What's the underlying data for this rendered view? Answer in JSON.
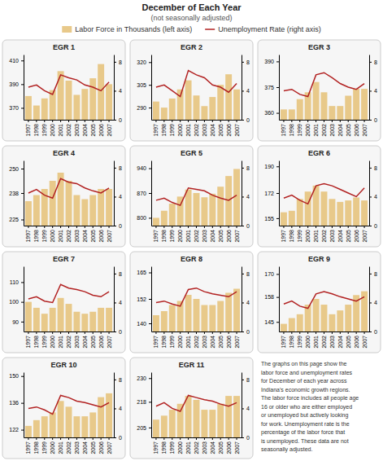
{
  "title": "December of Each Year",
  "subtitle": "(not seasonally adjusted)",
  "annotations": [
    "The graphs on this page show the\nlabor force and unemployment rates\nfor December of each year across\nIndiana's economic growth regions.\nThe labor force includes all people age\n16 or older who are either employed\nor unemployed but actively looking\nfor work. Unemployment rate is the\npercentage of the labor force that\nis unemployed. These data are not\nseasonally adjusted."
  ],
  "chart_data": [
    {
      "type": "bar",
      "title": "EGR 1",
      "categories": [
        "1997",
        "1998",
        "1999",
        "2000",
        "2001",
        "2002",
        "2003",
        "2004",
        "2005",
        "2006",
        "2007"
      ],
      "series": [
        {
          "name": "Labor Force in Thousands (left axis)",
          "type": "bar",
          "color": "#E8C98A",
          "values": [
            380,
            372,
            378,
            385,
            401,
            393,
            381,
            386,
            395,
            407,
            390
          ]
        },
        {
          "name": "Unemployment Rate (right axis)",
          "type": "line",
          "color": "#B22222",
          "axis": "y2",
          "values": [
            4.5,
            4.8,
            4.0,
            3.5,
            6.2,
            5.8,
            5.5,
            4.8,
            4.5,
            4.0,
            5.2
          ]
        }
      ],
      "ylim": [
        360,
        415
      ],
      "yticks": [
        370,
        390,
        410
      ],
      "y2lim": [
        0,
        9
      ],
      "y2ticks": [
        0,
        4,
        8
      ]
    },
    {
      "type": "bar",
      "title": "EGR 2",
      "categories": [
        "1997",
        "1998",
        "1999",
        "2000",
        "2001",
        "2002",
        "2003",
        "2004",
        "2005",
        "2006",
        "2007"
      ],
      "series": [
        {
          "type": "bar",
          "color": "#E8C98A",
          "values": [
            294,
            290,
            296,
            302,
            308,
            298,
            291,
            297,
            305,
            312,
            302
          ]
        },
        {
          "type": "line",
          "color": "#B22222",
          "axis": "y2",
          "values": [
            4.5,
            4.8,
            4.0,
            3.2,
            6.8,
            6.2,
            5.8,
            4.8,
            4.5,
            3.8,
            5.0
          ]
        }
      ],
      "ylim": [
        282,
        325
      ],
      "yticks": [
        290,
        305,
        320
      ],
      "y2lim": [
        0,
        9
      ],
      "y2ticks": [
        0,
        4,
        8
      ]
    },
    {
      "type": "bar",
      "title": "EGR 3",
      "categories": [
        "1997",
        "1998",
        "1999",
        "2000",
        "2001",
        "2002",
        "2003",
        "2004",
        "2005",
        "2006",
        "2007"
      ],
      "series": [
        {
          "type": "bar",
          "color": "#E8C98A",
          "values": [
            362,
            362,
            368,
            372,
            378,
            372,
            364,
            364,
            370,
            374,
            374
          ]
        },
        {
          "type": "line",
          "color": "#B22222",
          "axis": "y2",
          "values": [
            4.0,
            4.2,
            3.5,
            3.2,
            6.2,
            6.5,
            5.8,
            5.0,
            4.5,
            4.2,
            5.0
          ]
        }
      ],
      "ylim": [
        356,
        394
      ],
      "yticks": [
        360,
        375,
        390
      ],
      "y2lim": [
        0,
        9
      ],
      "y2ticks": [
        0,
        4,
        8
      ]
    },
    {
      "type": "bar",
      "title": "EGR 4",
      "categories": [
        "1997",
        "1998",
        "1999",
        "2000",
        "2001",
        "2002",
        "2003",
        "2004",
        "2005",
        "2006",
        "2007"
      ],
      "series": [
        {
          "type": "bar",
          "color": "#E8C98A",
          "values": [
            234,
            237,
            240,
            244,
            248,
            244,
            237,
            235,
            237,
            240,
            240
          ]
        },
        {
          "type": "line",
          "color": "#B22222",
          "axis": "y2",
          "values": [
            4.5,
            5.0,
            4.2,
            3.8,
            6.5,
            6.0,
            5.8,
            5.2,
            4.8,
            4.5,
            5.2
          ]
        }
      ],
      "ylim": [
        222,
        254
      ],
      "yticks": [
        225,
        238,
        250
      ],
      "y2lim": [
        0,
        9
      ],
      "y2ticks": [
        0,
        4,
        8
      ]
    },
    {
      "type": "bar",
      "title": "EGR 5",
      "categories": [
        "1997",
        "1998",
        "1999",
        "2000",
        "2001",
        "2002",
        "2003",
        "2004",
        "2005",
        "2006",
        "2007"
      ],
      "series": [
        {
          "type": "bar",
          "color": "#E8C98A",
          "values": [
            800,
            820,
            840,
            860,
            880,
            870,
            858,
            868,
            888,
            918,
            938
          ]
        },
        {
          "type": "line",
          "color": "#B22222",
          "axis": "y2",
          "values": [
            3.5,
            3.8,
            3.2,
            2.8,
            5.2,
            5.0,
            4.8,
            4.2,
            3.8,
            3.5,
            4.2
          ]
        }
      ],
      "ylim": [
        778,
        962
      ],
      "yticks": [
        800,
        870,
        940
      ],
      "y2lim": [
        0,
        9
      ],
      "y2ticks": [
        0,
        4,
        8
      ]
    },
    {
      "type": "bar",
      "title": "EGR 6",
      "categories": [
        "1997",
        "1998",
        "1999",
        "2000",
        "2001",
        "2002",
        "2003",
        "2004",
        "2005",
        "2006",
        "2007"
      ],
      "series": [
        {
          "type": "bar",
          "color": "#E8C98A",
          "values": [
            159,
            160,
            168,
            173,
            177,
            173,
            168,
            166,
            167,
            169,
            167
          ]
        },
        {
          "type": "line",
          "color": "#B22222",
          "axis": "y2",
          "values": [
            3.8,
            4.2,
            3.5,
            3.0,
            5.5,
            5.8,
            5.5,
            5.0,
            4.5,
            4.0,
            5.2
          ]
        }
      ],
      "ylim": [
        150,
        194
      ],
      "yticks": [
        155,
        172,
        190
      ],
      "y2lim": [
        0,
        9
      ],
      "y2ticks": [
        0,
        4,
        8
      ]
    },
    {
      "type": "bar",
      "title": "EGR 7",
      "categories": [
        "1997",
        "1998",
        "1999",
        "2000",
        "2001",
        "2002",
        "2003",
        "2004",
        "2005",
        "2006",
        "2007"
      ],
      "series": [
        {
          "type": "bar",
          "color": "#E8C98A",
          "values": [
            100,
            97,
            94,
            97,
            102,
            99,
            95,
            94,
            95,
            97,
            97
          ]
        },
        {
          "type": "line",
          "color": "#B22222",
          "axis": "y2",
          "values": [
            4.5,
            4.8,
            4.2,
            4.0,
            6.5,
            6.0,
            5.8,
            5.5,
            5.0,
            4.8,
            5.5
          ]
        }
      ],
      "ylim": [
        85,
        118
      ],
      "yticks": [
        90,
        100,
        110
      ],
      "y2lim": [
        0,
        9
      ],
      "y2ticks": [
        0,
        4,
        8
      ]
    },
    {
      "type": "bar",
      "title": "EGR 8",
      "categories": [
        "1997",
        "1998",
        "1999",
        "2000",
        "2001",
        "2002",
        "2003",
        "2004",
        "2005",
        "2006",
        "2007"
      ],
      "series": [
        {
          "type": "bar",
          "color": "#E8C98A",
          "values": [
            144,
            146,
            149,
            151,
            154,
            152,
            149,
            149,
            151,
            155,
            157
          ]
        },
        {
          "type": "line",
          "color": "#B22222",
          "axis": "y2",
          "values": [
            4.0,
            4.2,
            3.8,
            3.5,
            5.8,
            6.0,
            5.5,
            5.2,
            5.0,
            4.8,
            5.5
          ]
        }
      ],
      "ylim": [
        136,
        168
      ],
      "yticks": [
        140,
        152,
        165
      ],
      "y2lim": [
        0,
        9
      ],
      "y2ticks": [
        0,
        4,
        8
      ]
    },
    {
      "type": "bar",
      "title": "EGR 9",
      "categories": [
        "1997",
        "1998",
        "1999",
        "2000",
        "2001",
        "2002",
        "2003",
        "2004",
        "2005",
        "2006",
        "2007"
      ],
      "series": [
        {
          "type": "bar",
          "color": "#E8C98A",
          "values": [
            144,
            147,
            149,
            154,
            157,
            154,
            149,
            151,
            154,
            159,
            161
          ]
        },
        {
          "type": "line",
          "color": "#B22222",
          "axis": "y2",
          "values": [
            3.8,
            4.2,
            3.5,
            3.2,
            5.2,
            5.5,
            5.2,
            4.8,
            4.5,
            4.2,
            4.8
          ]
        }
      ],
      "ylim": [
        140,
        174
      ],
      "yticks": [
        145,
        158,
        170
      ],
      "y2lim": [
        0,
        9
      ],
      "y2ticks": [
        0,
        4,
        8
      ]
    },
    {
      "type": "bar",
      "title": "EGR 10",
      "categories": [
        "1997",
        "1998",
        "1999",
        "2000",
        "2001",
        "2002",
        "2003",
        "2004",
        "2005",
        "2006",
        "2007"
      ],
      "series": [
        {
          "type": "bar",
          "color": "#E8C98A",
          "values": [
            124,
            127,
            129,
            131,
            137,
            134,
            129,
            129,
            131,
            139,
            141
          ]
        },
        {
          "type": "line",
          "color": "#B22222",
          "axis": "y2",
          "values": [
            4.0,
            4.2,
            3.8,
            3.2,
            5.8,
            5.5,
            5.0,
            4.8,
            4.5,
            4.2,
            4.8
          ]
        }
      ],
      "ylim": [
        118,
        152
      ],
      "yticks": [
        122,
        136,
        150
      ],
      "y2lim": [
        0,
        9
      ],
      "y2ticks": [
        0,
        4,
        8
      ]
    },
    {
      "type": "bar",
      "title": "EGR 11",
      "categories": [
        "1997",
        "1998",
        "1999",
        "2000",
        "2001",
        "2002",
        "2003",
        "2004",
        "2005",
        "2006",
        "2007"
      ],
      "series": [
        {
          "type": "bar",
          "color": "#E8C98A",
          "values": [
            209,
            211,
            214,
            217,
            221,
            219,
            214,
            214,
            217,
            221,
            221
          ]
        },
        {
          "type": "line",
          "color": "#B22222",
          "axis": "y2",
          "values": [
            4.3,
            4.8,
            4.0,
            3.6,
            5.8,
            5.5,
            5.2,
            5.0,
            4.6,
            4.3,
            4.8
          ]
        }
      ],
      "ylim": [
        200,
        233
      ],
      "yticks": [
        205,
        218,
        230
      ],
      "y2lim": [
        0,
        9
      ],
      "y2ticks": [
        0,
        4,
        8
      ]
    }
  ]
}
